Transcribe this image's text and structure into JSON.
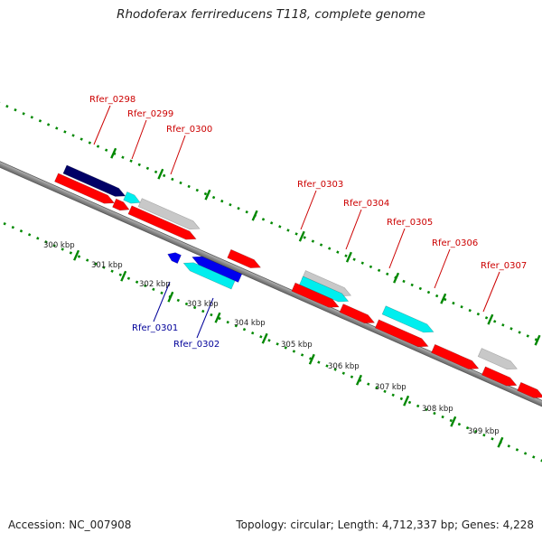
{
  "title": "Rhodoferax ferrireducens T118, complete genome",
  "footer": {
    "accession": "Accession: NC_007908",
    "info": "Topology: circular; Length: 4,712,337 bp; Genes: 4,228"
  },
  "colors": {
    "red": "#ff0000",
    "blue": "#0000ee",
    "navy": "#000066",
    "cyan": "#00eeee",
    "gray": "#c8c8c8",
    "orange": "#ff9900",
    "label_red": "#cc0000",
    "label_blue": "#000099",
    "ticks": "#008800"
  },
  "scale_labels": [
    "300 kbp",
    "301 kbp",
    "302 kbp",
    "303 kbp",
    "304 kbp",
    "305 kbp",
    "306 kbp",
    "307 kbp",
    "308 kbp",
    "309 kbp"
  ],
  "gene_labels": [
    {
      "text": "Rfer_0298",
      "strand": "top"
    },
    {
      "text": "Rfer_0299",
      "strand": "top"
    },
    {
      "text": "Rfer_0300",
      "strand": "top"
    },
    {
      "text": "Rfer_0301",
      "strand": "bottom"
    },
    {
      "text": "Rfer_0302",
      "strand": "bottom"
    },
    {
      "text": "Rfer_0303",
      "strand": "top"
    },
    {
      "text": "Rfer_0304",
      "strand": "top"
    },
    {
      "text": "Rfer_0305",
      "strand": "top"
    },
    {
      "text": "Rfer_0306",
      "strand": "top"
    },
    {
      "text": "Rfer_0307",
      "strand": "top"
    }
  ]
}
